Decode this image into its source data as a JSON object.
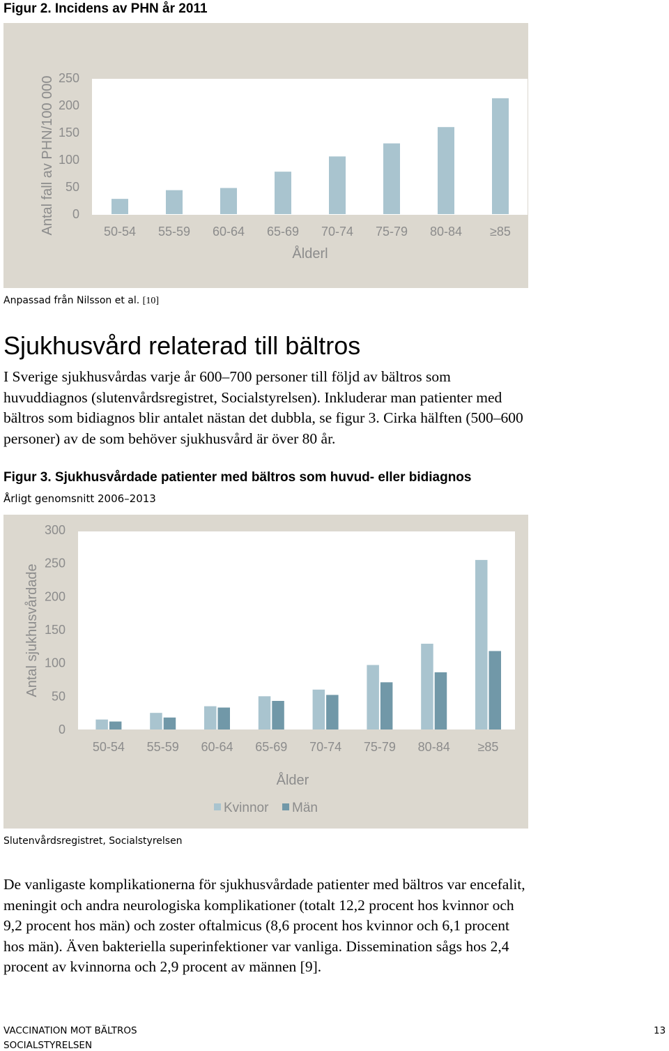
{
  "figure2": {
    "title": "Figur 2. Incidens av PHN år 2011",
    "source_note": "Anpassad från Nilsson et al.",
    "source_ref": "[10]"
  },
  "section": {
    "heading": "Sjukhusvård relaterad till bältros",
    "paragraph1": "I Sverige sjukhusvårdas varje år 600–700 personer till följd av bältros som huvuddiagnos (slutenvårdsregistret, Socialstyrelsen). Inkluderar man patienter med bältros som bidiagnos blir antalet nästan det dubbla, se figur 3. Cirka hälften (500–600 personer) av de som behöver sjukhusvård är över 80 år.",
    "paragraph2": "De vanligaste komplikationerna för sjukhusvårdade patienter med bältros var encefalit, meningit och andra neurologiska komplikationer (totalt 12,2 procent hos kvinnor och 9,2 procent hos män) och zoster oftalmicus (8,6 procent hos kvinnor och 6,1 procent hos män). Även bakteriella superinfektioner var vanliga. Dissemination sågs hos 2,4 procent av kvinnorna och 2,9 procent av männen [9]."
  },
  "figure3": {
    "title": "Figur 3. Sjukhusvårdade patienter med bältros som huvud- eller bidiagnos",
    "subtitle": "Årligt genomsnitt 2006–2013",
    "source_note": "Slutenvårdsregistret, Socialstyrelsen"
  },
  "footer": {
    "line1": "VACCINATION MOT BÄLTROS",
    "line2": "SOCIALSTYRELSEN",
    "page_number": "13"
  },
  "chart_data": [
    {
      "type": "bar",
      "categories": [
        "50-54",
        "55-59",
        "60-64",
        "65-69",
        "70-74",
        "75-79",
        "80-84",
        "≥85"
      ],
      "series": [
        {
          "values": [
            28,
            44,
            48,
            78,
            106,
            130,
            160,
            213
          ],
          "color": "#a9c4cf"
        }
      ],
      "xlabel": "Ålderl",
      "ylabel": "Antal fall av PHN/100 000",
      "yticks": [
        0,
        50,
        100,
        150,
        200,
        250
      ],
      "ylim": [
        0,
        250
      ],
      "grid": false,
      "legend": "none"
    },
    {
      "type": "bar",
      "categories": [
        "50-54",
        "55-59",
        "60-64",
        "65-69",
        "70-74",
        "75-79",
        "80-84",
        "≥85"
      ],
      "series": [
        {
          "name": "Kvinnor",
          "values": [
            15,
            25,
            35,
            50,
            60,
            97,
            129,
            255
          ],
          "color": "#a9c4cf"
        },
        {
          "name": "Män",
          "values": [
            12,
            18,
            33,
            43,
            52,
            71,
            86,
            118
          ],
          "color": "#7198a8"
        }
      ],
      "xlabel": "Ålder",
      "ylabel": "Antal sjukhusvårdade",
      "yticks": [
        0,
        50,
        100,
        150,
        200,
        250,
        300
      ],
      "ylim": [
        0,
        300
      ],
      "grid": false,
      "legend": "bottom"
    }
  ]
}
